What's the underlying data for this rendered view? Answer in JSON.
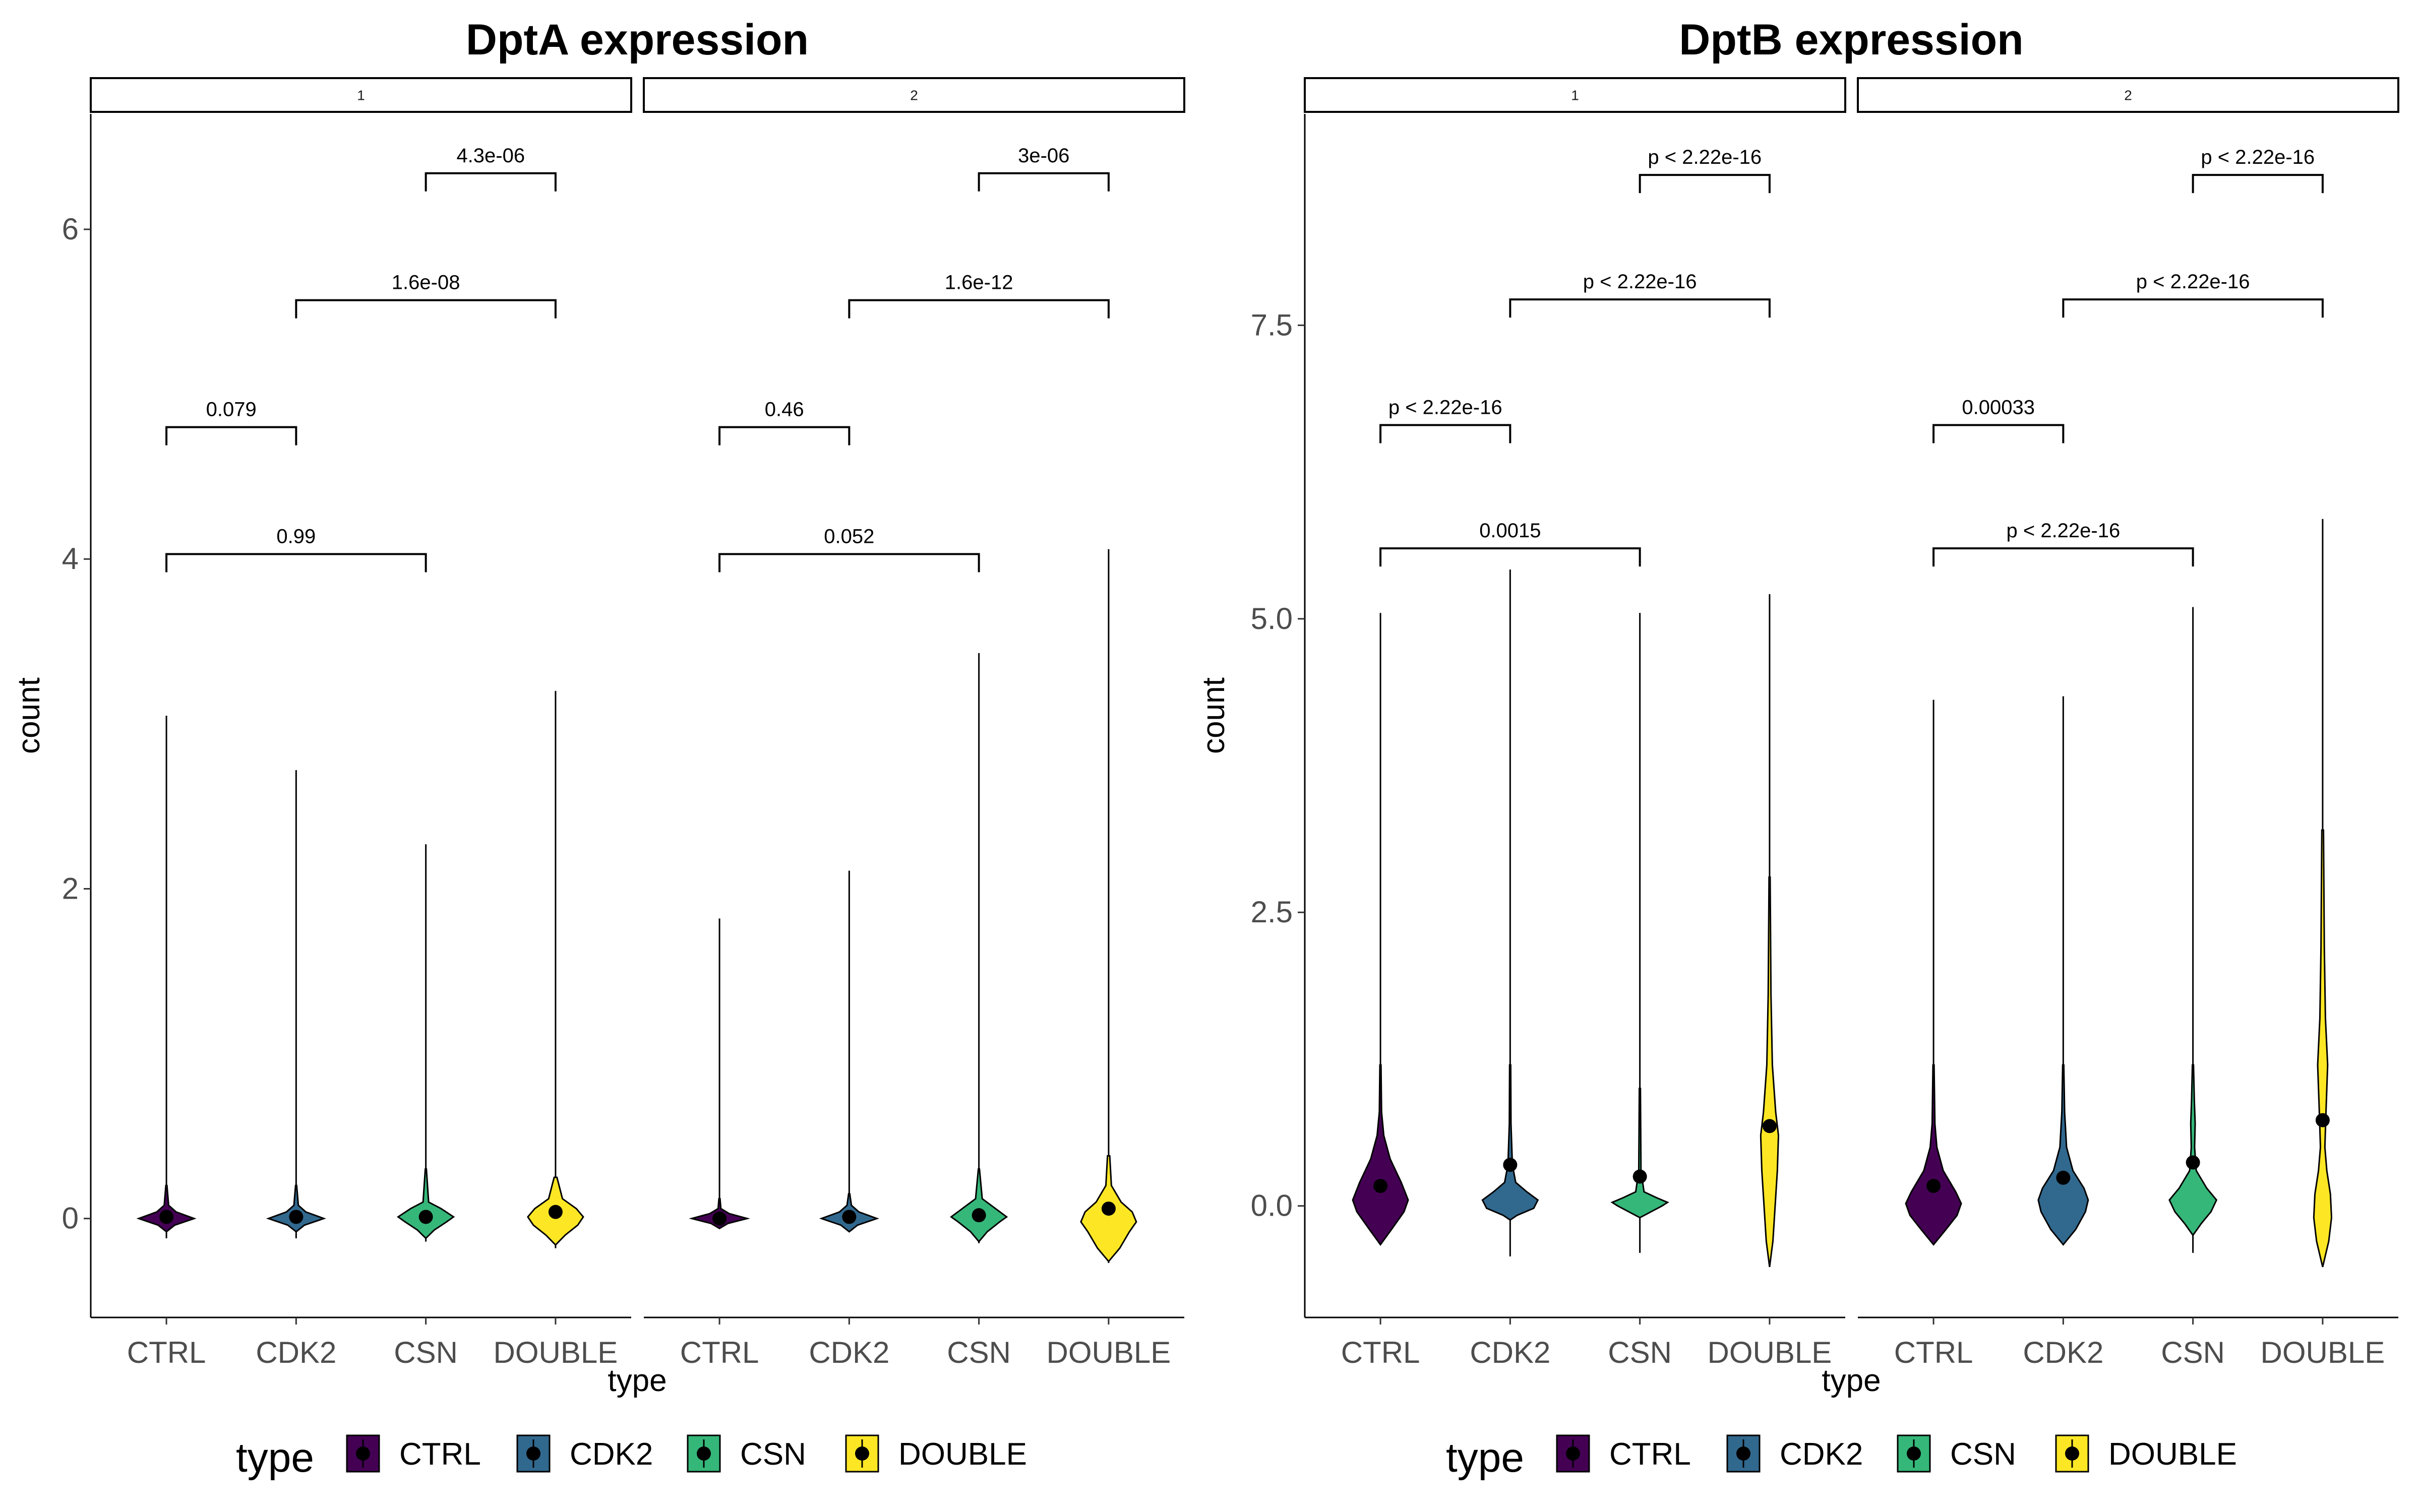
{
  "legend": {
    "title": "type",
    "entries": [
      {
        "label": "CTRL",
        "color": "#440154"
      },
      {
        "label": "CDK2",
        "color": "#31688E"
      },
      {
        "label": "CSN",
        "color": "#35B779"
      },
      {
        "label": "DOUBLE",
        "color": "#FDE725"
      }
    ]
  },
  "chart_data": [
    {
      "type": "violin",
      "title": "DptA expression",
      "xlabel": "type",
      "ylabel": "count",
      "categories": [
        "CTRL",
        "CDK2",
        "CSN",
        "DOUBLE"
      ],
      "ylim": [
        -0.6,
        6.7
      ],
      "yticks": [
        0,
        2,
        4,
        6
      ],
      "yticklabels": [
        "0",
        "2",
        "4",
        "6"
      ],
      "grid": false,
      "legend_position": "bottom",
      "facets": [
        {
          "label": "1",
          "violins": [
            {
              "category": "CTRL",
              "min": -0.12,
              "max": 3.05,
              "mean": 0.01,
              "body": [
                [
                  -0.08,
                  0.0
                ],
                [
                  -0.04,
                  0.3
                ],
                [
                  0.0,
                  1.0
                ],
                [
                  0.04,
                  0.35
                ],
                [
                  0.08,
                  0.08
                ],
                [
                  0.2,
                  0.02
                ]
              ]
            },
            {
              "category": "CDK2",
              "min": -0.12,
              "max": 2.72,
              "mean": 0.01,
              "body": [
                [
                  -0.08,
                  0.0
                ],
                [
                  -0.04,
                  0.3
                ],
                [
                  0.0,
                  1.0
                ],
                [
                  0.04,
                  0.35
                ],
                [
                  0.08,
                  0.08
                ],
                [
                  0.2,
                  0.02
                ]
              ]
            },
            {
              "category": "CSN",
              "min": -0.14,
              "max": 2.27,
              "mean": 0.01,
              "body": [
                [
                  -0.12,
                  0.0
                ],
                [
                  -0.07,
                  0.3
                ],
                [
                  -0.02,
                  0.75
                ],
                [
                  0.01,
                  1.0
                ],
                [
                  0.06,
                  0.55
                ],
                [
                  0.1,
                  0.1
                ],
                [
                  0.3,
                  0.02
                ]
              ]
            },
            {
              "category": "DOUBLE",
              "min": -0.18,
              "max": 3.2,
              "mean": 0.04,
              "body": [
                [
                  -0.16,
                  0.0
                ],
                [
                  -0.1,
                  0.35
                ],
                [
                  -0.04,
                  0.8
                ],
                [
                  0.01,
                  1.0
                ],
                [
                  0.06,
                  0.75
                ],
                [
                  0.12,
                  0.25
                ],
                [
                  0.25,
                  0.05
                ]
              ]
            }
          ],
          "comparisons": [
            {
              "groups": [
                "CTRL",
                "CSN"
              ],
              "label": "0.99",
              "y": 4.03
            },
            {
              "groups": [
                "CTRL",
                "CDK2"
              ],
              "label": "0.079",
              "y": 4.8
            },
            {
              "groups": [
                "CDK2",
                "DOUBLE"
              ],
              "label": "1.6e-08",
              "y": 5.57
            },
            {
              "groups": [
                "CSN",
                "DOUBLE"
              ],
              "label": "4.3e-06",
              "y": 6.34
            }
          ]
        },
        {
          "label": "2",
          "violins": [
            {
              "category": "CTRL",
              "min": -0.05,
              "max": 1.82,
              "mean": 0.0,
              "body": [
                [
                  -0.06,
                  0.0
                ],
                [
                  -0.03,
                  0.3
                ],
                [
                  0.0,
                  1.0
                ],
                [
                  0.03,
                  0.35
                ],
                [
                  0.06,
                  0.05
                ],
                [
                  0.12,
                  0.02
                ]
              ]
            },
            {
              "category": "CDK2",
              "min": -0.08,
              "max": 2.11,
              "mean": 0.01,
              "body": [
                [
                  -0.08,
                  0.0
                ],
                [
                  -0.04,
                  0.3
                ],
                [
                  0.0,
                  1.0
                ],
                [
                  0.04,
                  0.35
                ],
                [
                  0.08,
                  0.08
                ],
                [
                  0.15,
                  0.02
                ]
              ]
            },
            {
              "category": "CSN",
              "min": -0.15,
              "max": 3.43,
              "mean": 0.02,
              "body": [
                [
                  -0.14,
                  0.0
                ],
                [
                  -0.08,
                  0.3
                ],
                [
                  -0.02,
                  0.75
                ],
                [
                  0.01,
                  1.0
                ],
                [
                  0.06,
                  0.6
                ],
                [
                  0.12,
                  0.12
                ],
                [
                  0.3,
                  0.02
                ]
              ]
            },
            {
              "category": "DOUBLE",
              "min": -0.27,
              "max": 4.06,
              "mean": 0.06,
              "body": [
                [
                  -0.26,
                  0.0
                ],
                [
                  -0.18,
                  0.4
                ],
                [
                  -0.08,
                  0.75
                ],
                [
                  -0.02,
                  1.0
                ],
                [
                  0.04,
                  0.85
                ],
                [
                  0.1,
                  0.45
                ],
                [
                  0.2,
                  0.1
                ],
                [
                  0.38,
                  0.04
                ]
              ]
            }
          ],
          "comparisons": [
            {
              "groups": [
                "CTRL",
                "CSN"
              ],
              "label": "0.052",
              "y": 4.03
            },
            {
              "groups": [
                "CTRL",
                "CDK2"
              ],
              "label": "0.46",
              "y": 4.8
            },
            {
              "groups": [
                "CDK2",
                "DOUBLE"
              ],
              "label": "1.6e-12",
              "y": 5.57
            },
            {
              "groups": [
                "CSN",
                "DOUBLE"
              ],
              "label": "3e-06",
              "y": 6.34
            }
          ]
        }
      ]
    },
    {
      "type": "violin",
      "title": "DptB expression",
      "xlabel": "type",
      "ylabel": "count",
      "categories": [
        "CTRL",
        "CDK2",
        "CSN",
        "DOUBLE"
      ],
      "ylim": [
        -0.95,
        9.3
      ],
      "yticks": [
        0,
        2.5,
        5,
        7.5
      ],
      "yticklabels": [
        "0.0",
        "2.5",
        "5.0",
        "7.5"
      ],
      "grid": false,
      "legend_position": "bottom",
      "facets": [
        {
          "label": "1",
          "violins": [
            {
              "category": "CTRL",
              "min": -0.33,
              "max": 5.05,
              "mean": 0.17,
              "body": [
                [
                  -0.33,
                  0.0
                ],
                [
                  -0.2,
                  0.4
                ],
                [
                  -0.05,
                  0.85
                ],
                [
                  0.05,
                  1.0
                ],
                [
                  0.2,
                  0.75
                ],
                [
                  0.4,
                  0.35
                ],
                [
                  0.6,
                  0.12
                ],
                [
                  0.8,
                  0.04
                ],
                [
                  1.2,
                  0.02
                ]
              ]
            },
            {
              "category": "CDK2",
              "min": -0.43,
              "max": 5.42,
              "mean": 0.35,
              "body": [
                [
                  -0.12,
                  0.0
                ],
                [
                  -0.08,
                  0.25
                ],
                [
                  -0.02,
                  0.85
                ],
                [
                  0.05,
                  1.0
                ],
                [
                  0.12,
                  0.6
                ],
                [
                  0.2,
                  0.2
                ],
                [
                  0.35,
                  0.08
                ],
                [
                  0.7,
                  0.03
                ],
                [
                  1.2,
                  0.02
                ]
              ]
            },
            {
              "category": "CSN",
              "min": -0.4,
              "max": 5.05,
              "mean": 0.25,
              "body": [
                [
                  -0.1,
                  0.0
                ],
                [
                  -0.05,
                  0.4
                ],
                [
                  0.0,
                  0.8
                ],
                [
                  0.03,
                  1.0
                ],
                [
                  0.07,
                  0.6
                ],
                [
                  0.12,
                  0.15
                ],
                [
                  0.3,
                  0.04
                ],
                [
                  1.0,
                  0.02
                ]
              ]
            },
            {
              "category": "DOUBLE",
              "min": -0.52,
              "max": 5.21,
              "mean": 0.68,
              "body": [
                [
                  -0.52,
                  0.0
                ],
                [
                  -0.3,
                  0.12
                ],
                [
                  0.0,
                  0.2
                ],
                [
                  0.3,
                  0.28
                ],
                [
                  0.6,
                  0.32
                ],
                [
                  0.8,
                  0.22
                ],
                [
                  1.2,
                  0.1
                ],
                [
                  1.8,
                  0.05
                ],
                [
                  2.8,
                  0.02
                ]
              ]
            }
          ],
          "comparisons": [
            {
              "groups": [
                "CTRL",
                "CSN"
              ],
              "label": "0.0015",
              "y": 5.6
            },
            {
              "groups": [
                "CTRL",
                "CDK2"
              ],
              "label": "p < 2.22e-16",
              "y": 6.65
            },
            {
              "groups": [
                "CDK2",
                "DOUBLE"
              ],
              "label": "p < 2.22e-16",
              "y": 7.72
            },
            {
              "groups": [
                "CSN",
                "DOUBLE"
              ],
              "label": "p < 2.22e-16",
              "y": 8.78
            }
          ]
        },
        {
          "label": "2",
          "violins": [
            {
              "category": "CTRL",
              "min": -0.33,
              "max": 4.31,
              "mean": 0.17,
              "body": [
                [
                  -0.33,
                  0.0
                ],
                [
                  -0.2,
                  0.45
                ],
                [
                  -0.08,
                  0.85
                ],
                [
                  0.02,
                  1.0
                ],
                [
                  0.12,
                  0.8
                ],
                [
                  0.3,
                  0.35
                ],
                [
                  0.5,
                  0.12
                ],
                [
                  0.7,
                  0.05
                ],
                [
                  1.2,
                  0.02
                ]
              ]
            },
            {
              "category": "CDK2",
              "min": -0.33,
              "max": 4.34,
              "mean": 0.24,
              "body": [
                [
                  -0.33,
                  0.0
                ],
                [
                  -0.2,
                  0.45
                ],
                [
                  -0.05,
                  0.8
                ],
                [
                  0.05,
                  0.9
                ],
                [
                  0.15,
                  0.75
                ],
                [
                  0.3,
                  0.35
                ],
                [
                  0.5,
                  0.12
                ],
                [
                  0.8,
                  0.05
                ],
                [
                  1.2,
                  0.02
                ]
              ]
            },
            {
              "category": "CSN",
              "min": -0.4,
              "max": 5.1,
              "mean": 0.37,
              "body": [
                [
                  -0.25,
                  0.0
                ],
                [
                  -0.15,
                  0.3
                ],
                [
                  -0.05,
                  0.65
                ],
                [
                  0.05,
                  0.85
                ],
                [
                  0.15,
                  0.5
                ],
                [
                  0.3,
                  0.12
                ],
                [
                  0.5,
                  0.06
                ],
                [
                  0.7,
                  0.08
                ],
                [
                  0.9,
                  0.05
                ],
                [
                  1.2,
                  0.02
                ]
              ]
            },
            {
              "category": "DOUBLE",
              "min": -0.52,
              "max": 5.85,
              "mean": 0.73,
              "body": [
                [
                  -0.52,
                  0.0
                ],
                [
                  -0.3,
                  0.22
                ],
                [
                  -0.1,
                  0.32
                ],
                [
                  0.1,
                  0.28
                ],
                [
                  0.3,
                  0.15
                ],
                [
                  0.5,
                  0.08
                ],
                [
                  0.8,
                  0.12
                ],
                [
                  1.2,
                  0.18
                ],
                [
                  1.6,
                  0.1
                ],
                [
                  2.2,
                  0.06
                ],
                [
                  3.2,
                  0.03
                ]
              ]
            }
          ],
          "comparisons": [
            {
              "groups": [
                "CTRL",
                "CSN"
              ],
              "label": "p < 2.22e-16",
              "y": 5.6
            },
            {
              "groups": [
                "CTRL",
                "CDK2"
              ],
              "label": "0.00033",
              "y": 6.65
            },
            {
              "groups": [
                "CDK2",
                "DOUBLE"
              ],
              "label": "p < 2.22e-16",
              "y": 7.72
            },
            {
              "groups": [
                "CSN",
                "DOUBLE"
              ],
              "label": "p < 2.22e-16",
              "y": 8.78
            }
          ]
        }
      ]
    }
  ]
}
